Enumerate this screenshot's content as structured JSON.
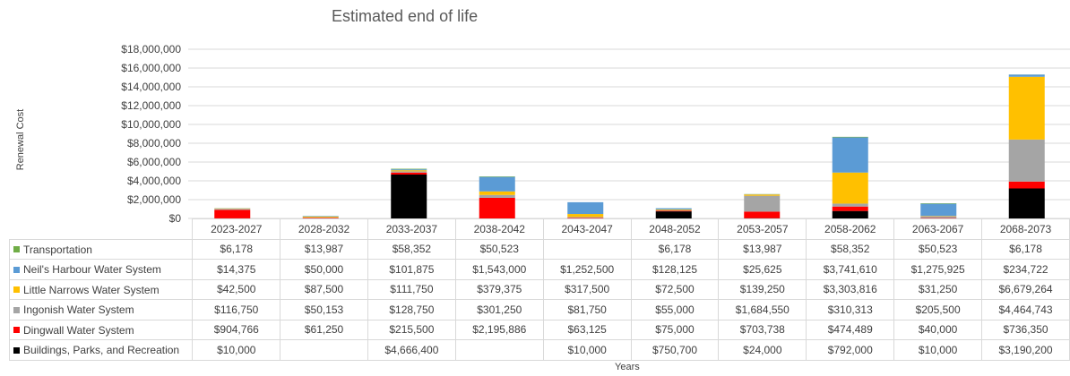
{
  "chart_data": {
    "type": "bar",
    "stacked": true,
    "title": "Estimated end of life",
    "xlabel": "Years",
    "ylabel": "Renewal Cost",
    "ylim": [
      0,
      18000000
    ],
    "yticks": [
      "$0",
      "$2,000,000",
      "$4,000,000",
      "$6,000,000",
      "$8,000,000",
      "$10,000,000",
      "$12,000,000",
      "$14,000,000",
      "$16,000,000",
      "$18,000,000"
    ],
    "grid": true,
    "legend": "data-table",
    "categories": [
      "2023-2027",
      "2028-2032",
      "2033-2037",
      "2038-2042",
      "2043-2047",
      "2048-2052",
      "2053-2057",
      "2058-2062",
      "2063-2067",
      "2068-2073"
    ],
    "series": [
      {
        "name": "Buildings, Parks, and Recreation",
        "color": "#000000",
        "values": [
          10000,
          null,
          4666400,
          null,
          10000,
          750700,
          24000,
          792000,
          10000,
          3190200
        ],
        "labels": [
          "$10,000",
          "",
          "$4,666,400",
          "",
          "$10,000",
          "$750,700",
          "$24,000",
          "$792,000",
          "$10,000",
          "$3,190,200"
        ]
      },
      {
        "name": "Dingwall Water System",
        "color": "#ff0000",
        "values": [
          904766,
          61250,
          215500,
          2195886,
          63125,
          75000,
          703738,
          474489,
          40000,
          736350
        ],
        "labels": [
          "$904,766",
          "$61,250",
          "$215,500",
          "$2,195,886",
          "$63,125",
          "$75,000",
          "$703,738",
          "$474,489",
          "$40,000",
          "$736,350"
        ]
      },
      {
        "name": "Ingonish Water System",
        "color": "#a5a5a5",
        "values": [
          116750,
          50153,
          128750,
          301250,
          81750,
          55000,
          1684550,
          310313,
          205500,
          4464743
        ],
        "labels": [
          "$116,750",
          "$50,153",
          "$128,750",
          "$301,250",
          "$81,750",
          "$55,000",
          "$1,684,550",
          "$310,313",
          "$205,500",
          "$4,464,743"
        ]
      },
      {
        "name": "Little Narrows Water System",
        "color": "#ffc000",
        "values": [
          42500,
          87500,
          111750,
          379375,
          317500,
          72500,
          139250,
          3303816,
          31250,
          6679264
        ],
        "labels": [
          "$42,500",
          "$87,500",
          "$111,750",
          "$379,375",
          "$317,500",
          "$72,500",
          "$139,250",
          "$3,303,816",
          "$31,250",
          "$6,679,264"
        ]
      },
      {
        "name": "Neil's Harbour Water System",
        "color": "#5b9bd5",
        "values": [
          14375,
          50000,
          101875,
          1543000,
          1252500,
          128125,
          25625,
          3741610,
          1275925,
          234722
        ],
        "labels": [
          "$14,375",
          "$50,000",
          "$101,875",
          "$1,543,000",
          "$1,252,500",
          "$128,125",
          "$25,625",
          "$3,741,610",
          "$1,275,925",
          "$234,722"
        ]
      },
      {
        "name": "Transportation",
        "color": "#70ad47",
        "values": [
          6178,
          13987,
          58352,
          50523,
          null,
          6178,
          13987,
          58352,
          50523,
          6178
        ],
        "labels": [
          "$6,178",
          "$13,987",
          "$58,352",
          "$50,523",
          "",
          "$6,178",
          "$13,987",
          "$58,352",
          "$50,523",
          "$6,178"
        ]
      }
    ],
    "table_row_order": [
      "Transportation",
      "Neil's Harbour Water System",
      "Little Narrows Water System",
      "Ingonish Water System",
      "Dingwall Water System",
      "Buildings, Parks, and Recreation"
    ]
  }
}
